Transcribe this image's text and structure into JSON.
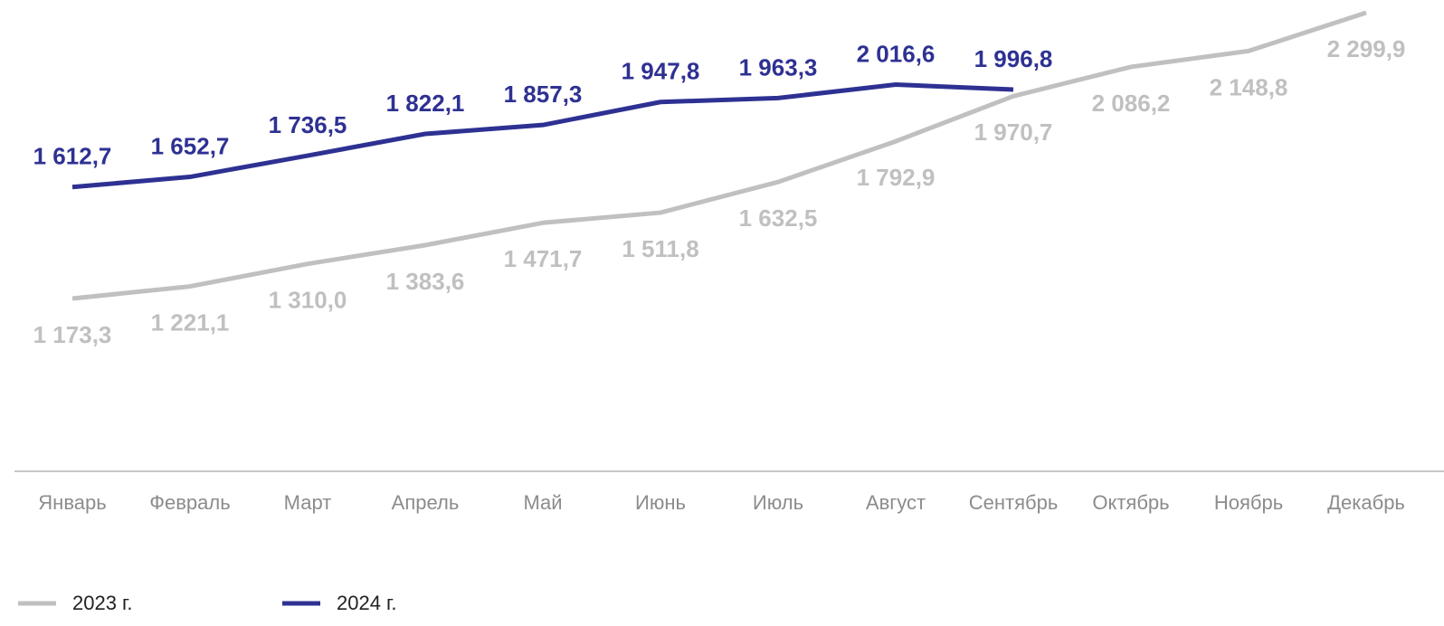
{
  "chart_data": {
    "type": "line",
    "categories": [
      "Январь",
      "Февраль",
      "Март",
      "Апрель",
      "Май",
      "Июнь",
      "Июль",
      "Август",
      "Сентябрь",
      "Октябрь",
      "Ноябрь",
      "Декабрь"
    ],
    "series": [
      {
        "name": "2023 г.",
        "color": "#c0c0c0",
        "values": [
          1173.3,
          1221.1,
          1310.0,
          1383.6,
          1471.7,
          1511.8,
          1632.5,
          1792.9,
          1970.7,
          2086.2,
          2148.8,
          2299.9
        ],
        "value_labels": [
          "1 173,3",
          "1 221,1",
          "1 310,0",
          "1 383,6",
          "1 471,7",
          "1 511,8",
          "1 632,5",
          "1 792,9",
          "1 970,7",
          "2 086,2",
          "2 148,8",
          "2 299,9"
        ]
      },
      {
        "name": "2024 г.",
        "color": "#2e3192",
        "values": [
          1612.7,
          1652.7,
          1736.5,
          1822.1,
          1857.3,
          1947.8,
          1963.3,
          2016.6,
          1996.8,
          null,
          null,
          null
        ],
        "value_labels": [
          "1 612,7",
          "1 652,7",
          "1 736,5",
          "1 822,1",
          "1 857,3",
          "1 947,8",
          "1 963,3",
          "2 016,6",
          "1 996,8",
          null,
          null,
          null
        ]
      }
    ]
  }
}
